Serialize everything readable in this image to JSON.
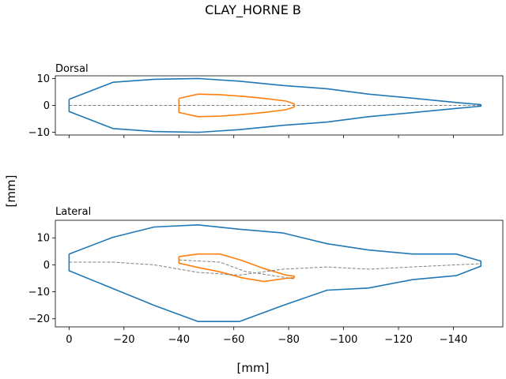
{
  "figure": {
    "title": "CLAY_HORNE B",
    "shared_xlabel": "[mm]",
    "shared_ylabel": "[mm]"
  },
  "colors": {
    "outline": "#1f77b4",
    "inner": "#ff7f0e",
    "midline": "#808080"
  },
  "chart_data": [
    {
      "type": "line",
      "title": "Dorsal",
      "xlim": [
        5,
        -158
      ],
      "ylim": [
        -11,
        11
      ],
      "xticks": [
        0,
        -20,
        -40,
        -60,
        -80,
        -100,
        -120,
        -140
      ],
      "xtick_labels_visible": false,
      "yticks": [
        -10,
        0,
        10
      ],
      "ytick_labels": [
        "−10",
        "0",
        "10"
      ],
      "series": [
        {
          "role": "outline",
          "x": [
            0,
            -16,
            -31,
            -47,
            -62,
            -78,
            -94,
            -109,
            -125,
            -141,
            -150,
            -150,
            -141,
            -125,
            -109,
            -94,
            -78,
            -62,
            -47,
            -31,
            -16,
            0,
            0
          ],
          "y": [
            2.3,
            8.6,
            9.7,
            10.0,
            9.0,
            7.4,
            6.2,
            4.2,
            2.7,
            1.1,
            0.3,
            -0.3,
            -1.1,
            -2.7,
            -4.2,
            -6.2,
            -7.4,
            -9.0,
            -10.0,
            -9.7,
            -8.6,
            -2.3,
            2.3
          ]
        },
        {
          "role": "inner",
          "x": [
            -40,
            -47,
            -55,
            -63,
            -71,
            -79,
            -82,
            -82,
            -79,
            -71,
            -63,
            -55,
            -47,
            -40,
            -40
          ],
          "y": [
            2.6,
            4.2,
            4.0,
            3.4,
            2.6,
            1.6,
            0.6,
            -0.6,
            -1.6,
            -2.6,
            -3.4,
            -4.0,
            -4.2,
            -2.6,
            2.6
          ]
        },
        {
          "role": "midline",
          "dashed": true,
          "x": [
            0,
            -150
          ],
          "y": [
            0,
            0
          ]
        }
      ]
    },
    {
      "type": "line",
      "title": "Lateral",
      "xlim": [
        5,
        -158
      ],
      "ylim": [
        -23,
        16.5
      ],
      "xticks": [
        0,
        -20,
        -40,
        -60,
        -80,
        -100,
        -120,
        -140
      ],
      "xtick_labels": [
        "0",
        "−20",
        "−40",
        "−60",
        "−80",
        "−100",
        "−120",
        "−140"
      ],
      "yticks": [
        -20,
        -10,
        0,
        10
      ],
      "ytick_labels": [
        "−20",
        "−10",
        "0",
        "10"
      ],
      "series": [
        {
          "role": "outline",
          "x": [
            0,
            -16,
            -31,
            -47,
            -62,
            -78,
            -94,
            -109,
            -125,
            -141,
            -150,
            -150,
            -141,
            -125,
            -109,
            -94,
            -78,
            -62,
            -47,
            -31,
            -16,
            0,
            0
          ],
          "y": [
            4.0,
            10.2,
            14.0,
            14.8,
            13.2,
            11.8,
            7.8,
            5.5,
            4.0,
            4.0,
            1.4,
            -0.5,
            -4.0,
            -5.5,
            -8.6,
            -9.4,
            -15.0,
            -21.0,
            -21.0,
            -15.0,
            -8.8,
            -2.2,
            4.0
          ]
        },
        {
          "role": "inner",
          "x": [
            -40,
            -47,
            -55,
            -63,
            -71,
            -79,
            -82,
            -82,
            -79,
            -71,
            -63,
            -55,
            -47,
            -40,
            -40
          ],
          "y": [
            3.0,
            4.0,
            4.0,
            1.6,
            -1.4,
            -3.8,
            -4.2,
            -4.8,
            -5.0,
            -6.2,
            -4.8,
            -2.6,
            -1.0,
            0.6,
            3.0
          ]
        },
        {
          "role": "midline",
          "dashed": true,
          "x": [
            0,
            -16,
            -31,
            -47,
            -62,
            -78,
            -94,
            -109,
            -125,
            -141,
            -150
          ],
          "y": [
            1.0,
            1.0,
            0.0,
            -2.8,
            -3.8,
            -1.6,
            -0.8,
            -1.6,
            -0.8,
            0.0,
            0.4
          ]
        },
        {
          "role": "midline",
          "dashed": true,
          "x": [
            -40,
            -55,
            -64,
            -82
          ],
          "y": [
            1.8,
            1.0,
            -2.4,
            -5.2
          ]
        }
      ]
    }
  ]
}
